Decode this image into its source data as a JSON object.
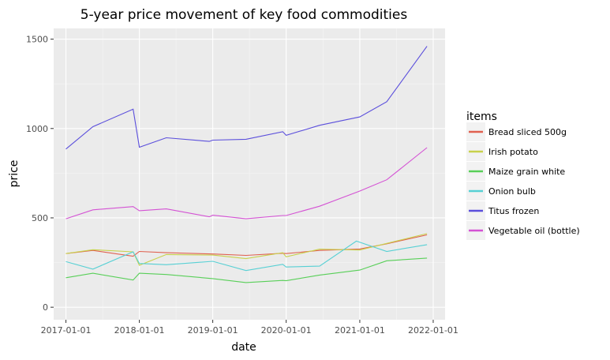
{
  "chart_data": {
    "type": "line",
    "title": "5-year price movement of key food commodities",
    "xlabel": "date",
    "ylabel": "price",
    "x_ticks": [
      "2017-01-01",
      "2018-01-01",
      "2019-01-01",
      "2020-01-01",
      "2021-01-01",
      "2022-01-01"
    ],
    "y_ticks": [
      0,
      500,
      1000,
      1500
    ],
    "xlim": [
      "2016-11-01",
      "2022-03-01"
    ],
    "ylim": [
      -70,
      1560
    ],
    "grid": true,
    "legend_title": "items",
    "legend_position": "right",
    "series": [
      {
        "name": "Bread sliced 500g",
        "color": "#e0604f",
        "x": [
          "2017-01-01",
          "2017-05-15",
          "2017-12-01",
          "2018-01-01",
          "2018-05-15",
          "2019-01-01",
          "2019-06-15",
          "2019-12-15",
          "2020-01-01",
          "2020-06-15",
          "2021-01-01",
          "2021-05-15",
          "2021-12-01"
        ],
        "y": [
          300,
          318,
          285,
          312,
          305,
          298,
          290,
          302,
          300,
          318,
          326,
          355,
          405
        ]
      },
      {
        "name": "Irish potato",
        "color": "#c8d14c",
        "x": [
          "2017-01-01",
          "2017-05-15",
          "2017-12-01",
          "2018-01-01",
          "2018-05-15",
          "2019-01-01",
          "2019-06-15",
          "2019-12-15",
          "2020-01-01",
          "2020-06-15",
          "2021-01-01",
          "2021-05-15",
          "2021-12-01"
        ],
        "y": [
          300,
          322,
          310,
          235,
          295,
          292,
          272,
          305,
          282,
          325,
          320,
          357,
          412
        ]
      },
      {
        "name": "Maize grain white",
        "color": "#58cf58",
        "x": [
          "2017-01-01",
          "2017-05-15",
          "2017-12-01",
          "2018-01-01",
          "2018-05-15",
          "2019-01-01",
          "2019-06-15",
          "2019-12-15",
          "2020-01-01",
          "2020-06-15",
          "2021-01-01",
          "2021-05-15",
          "2021-12-01"
        ],
        "y": [
          165,
          190,
          152,
          190,
          183,
          160,
          138,
          150,
          148,
          180,
          208,
          260,
          275
        ]
      },
      {
        "name": "Onion bulb",
        "color": "#57d0d4",
        "x": [
          "2017-01-01",
          "2017-05-15",
          "2017-12-01",
          "2018-01-01",
          "2018-05-15",
          "2019-01-01",
          "2019-06-15",
          "2019-12-15",
          "2020-01-01",
          "2020-06-15",
          "2020-12-15",
          "2021-05-15",
          "2021-12-01"
        ],
        "y": [
          255,
          213,
          310,
          245,
          238,
          257,
          205,
          240,
          225,
          230,
          370,
          312,
          350
        ]
      },
      {
        "name": "Titus frozen",
        "color": "#5b4fdc",
        "x": [
          "2017-01-01",
          "2017-05-15",
          "2017-12-01",
          "2018-01-01",
          "2018-05-15",
          "2018-12-15",
          "2019-01-01",
          "2019-06-15",
          "2019-12-15",
          "2020-01-01",
          "2020-06-15",
          "2021-01-01",
          "2021-05-15",
          "2021-12-01"
        ],
        "y": [
          885,
          1010,
          1108,
          895,
          948,
          928,
          935,
          940,
          982,
          962,
          1018,
          1065,
          1150,
          1460
        ]
      },
      {
        "name": "Vegetable oil (bottle)",
        "color": "#d452d4",
        "x": [
          "2017-01-01",
          "2017-05-15",
          "2017-12-01",
          "2018-01-01",
          "2018-05-15",
          "2018-12-15",
          "2019-01-01",
          "2019-06-15",
          "2019-12-15",
          "2020-01-01",
          "2020-06-15",
          "2021-01-01",
          "2021-05-15",
          "2021-12-01"
        ],
        "y": [
          495,
          545,
          563,
          540,
          550,
          506,
          515,
          495,
          513,
          513,
          565,
          650,
          713,
          893
        ]
      }
    ]
  }
}
